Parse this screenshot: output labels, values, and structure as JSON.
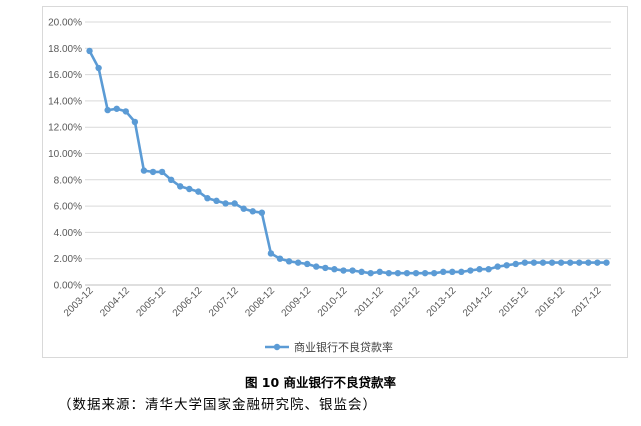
{
  "chart_data": {
    "type": "line",
    "series": [
      {
        "name": "商业银行不良贷款率",
        "color": "#5b9bd5",
        "values": [
          17.8,
          16.5,
          13.3,
          13.4,
          13.2,
          12.4,
          8.7,
          8.6,
          8.6,
          8.0,
          7.5,
          7.3,
          7.1,
          6.6,
          6.4,
          6.2,
          6.2,
          5.8,
          5.6,
          5.5,
          2.4,
          2.0,
          1.8,
          1.7,
          1.6,
          1.4,
          1.3,
          1.2,
          1.1,
          1.1,
          1.0,
          0.9,
          1.0,
          0.9,
          0.9,
          0.9,
          0.9,
          0.9,
          0.9,
          1.0,
          1.0,
          1.0,
          1.1,
          1.2,
          1.2,
          1.4,
          1.5,
          1.6,
          1.7,
          1.7,
          1.7,
          1.7,
          1.7,
          1.7,
          1.7,
          1.7,
          1.7,
          1.7
        ]
      }
    ],
    "x_ticks": [
      "2003-12",
      "2004-12",
      "2005-12",
      "2006-12",
      "2007-12",
      "2008-12",
      "2009-12",
      "2010-12",
      "2011-12",
      "2012-12",
      "2013-12",
      "2014-12",
      "2015-12",
      "2016-12",
      "2017-12"
    ],
    "y_ticks": [
      "0.00%",
      "2.00%",
      "4.00%",
      "6.00%",
      "8.00%",
      "10.00%",
      "12.00%",
      "14.00%",
      "16.00%",
      "18.00%",
      "20.00%"
    ],
    "ylim": [
      0,
      20
    ],
    "grid": true,
    "legend_position": "bottom"
  },
  "figure": {
    "caption": "图 10 商业银行不良贷款率",
    "source": "（数据来源：清华大学国家金融研究院、银监会）"
  }
}
